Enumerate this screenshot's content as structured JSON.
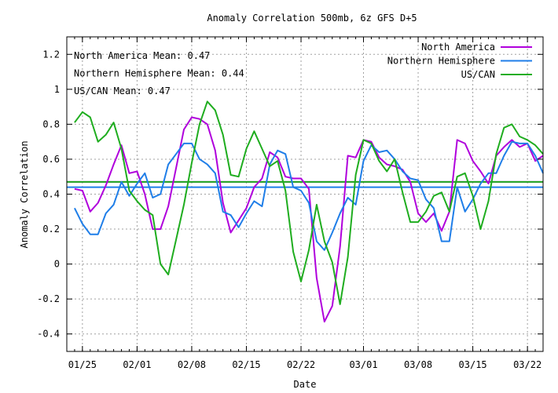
{
  "chart_data": {
    "type": "line",
    "title": "Anomaly Correlation 500mb, 6z GFS  D+5",
    "xlabel": "Date",
    "ylabel": "Anomaly Correlation",
    "ylim": [
      -0.5,
      1.3
    ],
    "xlim": [
      "01/23",
      "03/24"
    ],
    "grid": true,
    "legend_position": "top-right",
    "y_ticks": [
      "-0.4",
      "-0.2",
      "0",
      "0.2",
      "0.4",
      "0.6",
      "0.8",
      "1",
      "1.2"
    ],
    "x_ticks": [
      "01/25",
      "02/01",
      "02/08",
      "02/15",
      "02/22",
      "03/01",
      "03/08",
      "03/15",
      "03/22"
    ],
    "annotations": [
      "North America Mean: 0.47",
      "Northern Hemisphere Mean: 0.44",
      "US/CAN Mean: 0.47"
    ],
    "means": [
      0.47,
      0.44,
      0.47
    ],
    "dates": [
      "01/24",
      "01/25",
      "01/26",
      "01/27",
      "01/28",
      "01/29",
      "01/30",
      "01/31",
      "02/01",
      "02/02",
      "02/03",
      "02/04",
      "02/05",
      "02/06",
      "02/07",
      "02/08",
      "02/09",
      "02/10",
      "02/11",
      "02/12",
      "02/13",
      "02/14",
      "02/15",
      "02/16",
      "02/17",
      "02/18",
      "02/19",
      "02/20",
      "02/21",
      "02/22",
      "02/23",
      "02/24",
      "02/25",
      "02/26",
      "02/27",
      "02/28",
      "02/29",
      "03/01",
      "03/02",
      "03/03",
      "03/04",
      "03/05",
      "03/06",
      "03/07",
      "03/08",
      "03/09",
      "03/10",
      "03/11",
      "03/12",
      "03/13",
      "03/14",
      "03/15",
      "03/16",
      "03/17",
      "03/18",
      "03/19",
      "03/20",
      "03/21",
      "03/22",
      "03/23",
      "03/24"
    ],
    "series": [
      {
        "name": "North America",
        "color": "#b000dc",
        "values": [
          0.43,
          0.42,
          0.3,
          0.35,
          0.45,
          0.57,
          0.68,
          0.52,
          0.53,
          0.4,
          0.2,
          0.2,
          0.33,
          0.55,
          0.77,
          0.84,
          0.83,
          0.8,
          0.65,
          0.35,
          0.18,
          0.25,
          0.32,
          0.44,
          0.49,
          0.64,
          0.61,
          0.5,
          0.49,
          0.49,
          0.43,
          -0.08,
          -0.33,
          -0.24,
          0.1,
          0.62,
          0.61,
          0.71,
          0.7,
          0.61,
          0.57,
          0.56,
          0.54,
          0.47,
          0.29,
          0.24,
          0.29,
          0.19,
          0.3,
          0.71,
          0.69,
          0.59,
          0.53,
          0.46,
          0.62,
          0.67,
          0.71,
          0.67,
          0.69,
          0.59,
          0.62
        ]
      },
      {
        "name": "Northern Hemisphere",
        "color": "#1f7ee8",
        "values": [
          0.32,
          0.23,
          0.17,
          0.17,
          0.29,
          0.34,
          0.47,
          0.39,
          0.46,
          0.52,
          0.38,
          0.4,
          0.57,
          0.63,
          0.69,
          0.69,
          0.6,
          0.57,
          0.52,
          0.3,
          0.28,
          0.21,
          0.29,
          0.36,
          0.33,
          0.57,
          0.65,
          0.63,
          0.44,
          0.42,
          0.35,
          0.13,
          0.08,
          0.18,
          0.29,
          0.38,
          0.34,
          0.59,
          0.68,
          0.64,
          0.65,
          0.6,
          0.53,
          0.49,
          0.48,
          0.37,
          0.32,
          0.13,
          0.13,
          0.44,
          0.3,
          0.37,
          0.46,
          0.52,
          0.52,
          0.62,
          0.7,
          0.69,
          0.69,
          0.62,
          0.52
        ]
      },
      {
        "name": "US/CAN",
        "color": "#1fad1f",
        "values": [
          0.81,
          0.87,
          0.84,
          0.7,
          0.74,
          0.81,
          0.66,
          0.42,
          0.36,
          0.31,
          0.28,
          0.0,
          -0.06,
          0.14,
          0.34,
          0.58,
          0.8,
          0.93,
          0.88,
          0.74,
          0.51,
          0.5,
          0.66,
          0.76,
          0.66,
          0.56,
          0.59,
          0.42,
          0.07,
          -0.1,
          0.08,
          0.34,
          0.13,
          0.01,
          -0.23,
          0.04,
          0.51,
          0.71,
          0.69,
          0.59,
          0.53,
          0.6,
          0.41,
          0.24,
          0.24,
          0.3,
          0.39,
          0.41,
          0.3,
          0.5,
          0.52,
          0.39,
          0.2,
          0.36,
          0.63,
          0.78,
          0.8,
          0.73,
          0.71,
          0.68,
          0.63
        ]
      }
    ]
  }
}
